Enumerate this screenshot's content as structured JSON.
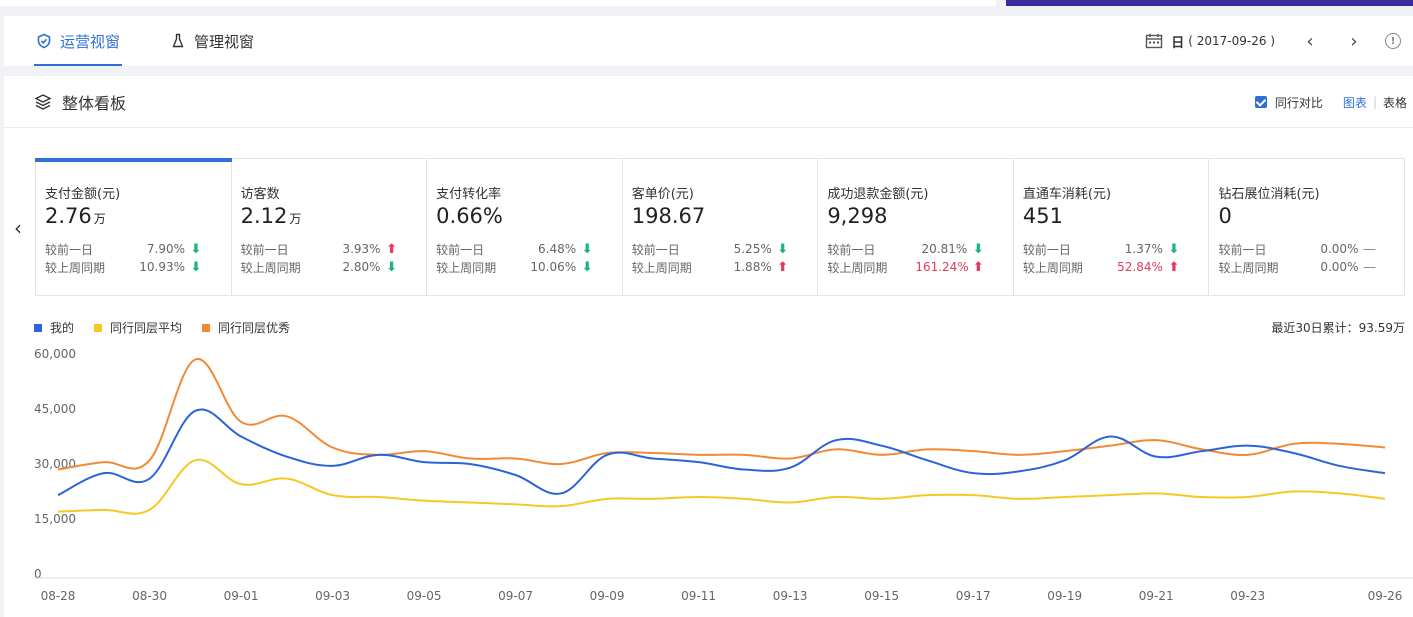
{
  "nav": {
    "tabs": [
      {
        "label": "运营视窗",
        "active": true
      },
      {
        "label": "管理视窗",
        "active": false
      }
    ],
    "date_prefix": "日",
    "date_value": "( 2017-09-26 )",
    "prev_icon": "chevron-left-icon",
    "next_icon": "chevron-right-icon",
    "info_icon": "info-icon"
  },
  "panel": {
    "title": "整体看板",
    "compare_label": "同行对比",
    "compare_checked": true,
    "view_chart": "图表",
    "view_table": "表格"
  },
  "metrics": [
    {
      "label": "支付金额(元)",
      "value": "2.76",
      "unit": "万",
      "active": true,
      "rows": [
        {
          "label": "较前一日",
          "value": "7.90%",
          "dir": "down",
          "red": false
        },
        {
          "label": "较上周同期",
          "value": "10.93%",
          "dir": "down",
          "red": false
        }
      ]
    },
    {
      "label": "访客数",
      "value": "2.12",
      "unit": "万",
      "active": false,
      "rows": [
        {
          "label": "较前一日",
          "value": "3.93%",
          "dir": "up",
          "red": false
        },
        {
          "label": "较上周同期",
          "value": "2.80%",
          "dir": "down",
          "red": false
        }
      ]
    },
    {
      "label": "支付转化率",
      "value": "0.66%",
      "unit": "",
      "active": false,
      "rows": [
        {
          "label": "较前一日",
          "value": "6.48%",
          "dir": "down",
          "red": false
        },
        {
          "label": "较上周同期",
          "value": "10.06%",
          "dir": "down",
          "red": false
        }
      ]
    },
    {
      "label": "客单价(元)",
      "value": "198.67",
      "unit": "",
      "active": false,
      "rows": [
        {
          "label": "较前一日",
          "value": "5.25%",
          "dir": "down",
          "red": false
        },
        {
          "label": "较上周同期",
          "value": "1.88%",
          "dir": "up",
          "red": false
        }
      ]
    },
    {
      "label": "成功退款金额(元)",
      "value": "9,298",
      "unit": "",
      "active": false,
      "rows": [
        {
          "label": "较前一日",
          "value": "20.81%",
          "dir": "down",
          "red": false
        },
        {
          "label": "较上周同期",
          "value": "161.24%",
          "dir": "up",
          "red": true
        }
      ]
    },
    {
      "label": "直通车消耗(元)",
      "value": "451",
      "unit": "",
      "active": false,
      "rows": [
        {
          "label": "较前一日",
          "value": "1.37%",
          "dir": "down",
          "red": false
        },
        {
          "label": "较上周同期",
          "value": "52.84%",
          "dir": "up",
          "red": true
        }
      ]
    },
    {
      "label": "钻石展位消耗(元)",
      "value": "0",
      "unit": "",
      "active": false,
      "rows": [
        {
          "label": "较前一日",
          "value": "0.00%",
          "dir": "flat",
          "red": false
        },
        {
          "label": "较上周同期",
          "value": "0.00%",
          "dir": "flat",
          "red": false
        }
      ]
    }
  ],
  "legend": [
    {
      "name": "我的",
      "color": "#2c64d8"
    },
    {
      "name": "同行同层平均",
      "color": "#f5c923"
    },
    {
      "name": "同行同层优秀",
      "color": "#f28a35"
    }
  ],
  "total_label": "最近30日累计：93.59万",
  "chart_data": {
    "type": "line",
    "x": [
      "08-28",
      "08-29",
      "08-30",
      "08-31",
      "09-01",
      "09-02",
      "09-03",
      "09-04",
      "09-05",
      "09-06",
      "09-07",
      "09-08",
      "09-09",
      "09-10",
      "09-11",
      "09-12",
      "09-13",
      "09-14",
      "09-15",
      "09-16",
      "09-17",
      "09-18",
      "09-19",
      "09-20",
      "09-21",
      "09-22",
      "09-23",
      "09-24",
      "09-25",
      "09-26"
    ],
    "x_tick_labels": [
      "08-28",
      "08-30",
      "09-01",
      "09-03",
      "09-05",
      "09-07",
      "09-09",
      "09-11",
      "09-13",
      "09-15",
      "09-17",
      "09-19",
      "09-21",
      "09-23",
      "09-26"
    ],
    "y_ticks": [
      0,
      15000,
      30000,
      45000,
      60000
    ],
    "y_tick_labels": [
      "0",
      "15,000",
      "30,000",
      "45,000",
      "60,000"
    ],
    "ylim": [
      0,
      60000
    ],
    "series": [
      {
        "name": "我的",
        "color": "#2c64d8",
        "values": [
          21500,
          27500,
          26000,
          44500,
          37500,
          32000,
          29500,
          32500,
          30500,
          30000,
          27000,
          22000,
          32500,
          31500,
          30500,
          28500,
          29000,
          36500,
          35000,
          31000,
          27500,
          28000,
          31000,
          37500,
          32000,
          33500,
          35000,
          33000,
          29500,
          27500
        ]
      },
      {
        "name": "同行同层平均",
        "color": "#f5c923",
        "values": [
          17000,
          17500,
          17500,
          31000,
          24500,
          26000,
          21500,
          21000,
          20000,
          19500,
          19000,
          18500,
          20500,
          20500,
          21000,
          20500,
          19500,
          21000,
          20500,
          21500,
          21500,
          20500,
          21000,
          21500,
          22000,
          21000,
          21000,
          22500,
          22000,
          20500
        ]
      },
      {
        "name": "同行同层优秀",
        "color": "#f28a35",
        "values": [
          28500,
          30500,
          31000,
          58500,
          41500,
          43000,
          34500,
          32500,
          33500,
          31500,
          31500,
          30000,
          33000,
          33000,
          32500,
          32500,
          31500,
          34000,
          32500,
          34000,
          33500,
          32500,
          33500,
          35000,
          36500,
          34000,
          32500,
          35500,
          35500,
          34500
        ]
      }
    ]
  }
}
